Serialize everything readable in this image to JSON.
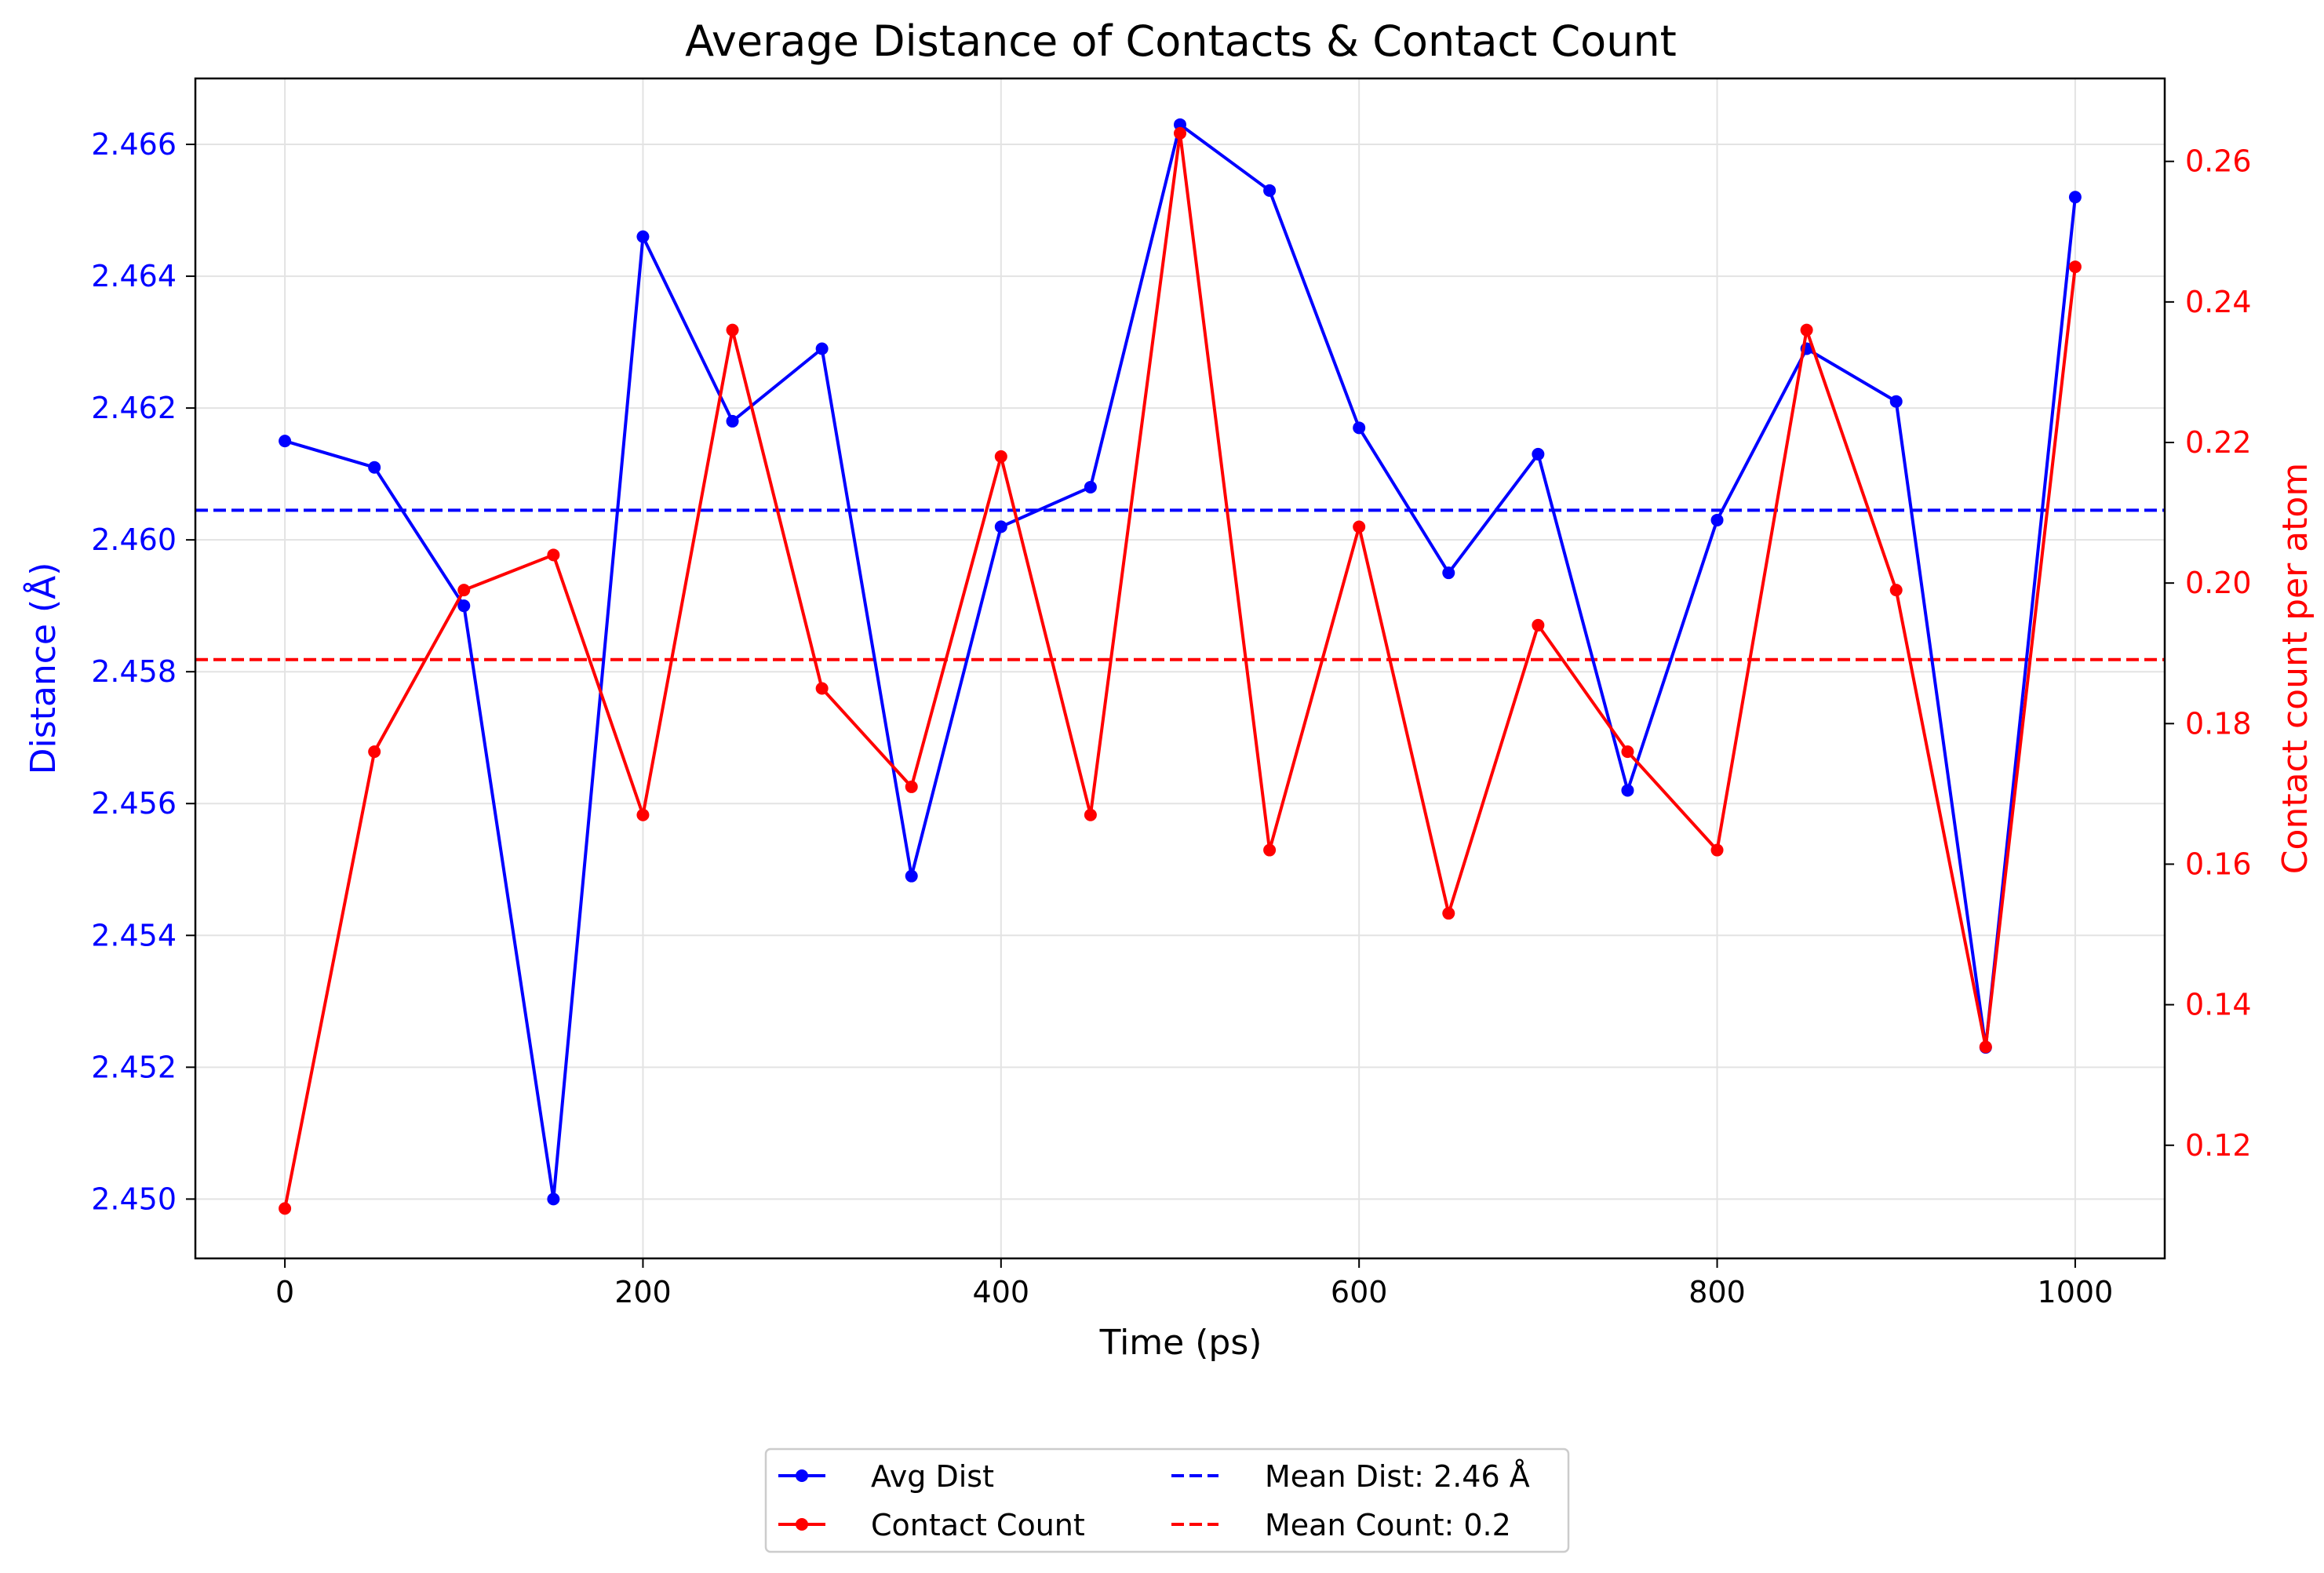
{
  "chart_data": {
    "type": "line",
    "title": "Average Distance of Contacts & Contact Count",
    "xlabel": "Time (ps)",
    "ylabel_left": "Distance (Å)",
    "ylabel_right": "Contact count per atom",
    "xlim": [
      -50,
      1050
    ],
    "ylim_left": [
      2.4491,
      2.467
    ],
    "ylim_right": [
      0.1039,
      0.2718
    ],
    "xticks": [
      0,
      200,
      400,
      600,
      800,
      1000
    ],
    "xtick_labels": [
      "0",
      "200",
      "400",
      "600",
      "800",
      "1000"
    ],
    "yticks_left": [
      2.45,
      2.452,
      2.454,
      2.456,
      2.458,
      2.46,
      2.462,
      2.464,
      2.466
    ],
    "ytick_labels_left": [
      "2.450",
      "2.452",
      "2.454",
      "2.456",
      "2.458",
      "2.460",
      "2.462",
      "2.464",
      "2.466"
    ],
    "yticks_right": [
      0.12,
      0.14,
      0.16,
      0.18,
      0.2,
      0.22,
      0.24,
      0.26
    ],
    "ytick_labels_right": [
      "0.12",
      "0.14",
      "0.16",
      "0.18",
      "0.20",
      "0.22",
      "0.24",
      "0.26"
    ],
    "grid": true,
    "legend_position": "below-center",
    "x": [
      0,
      50,
      100,
      150,
      200,
      250,
      300,
      350,
      400,
      450,
      500,
      550,
      600,
      650,
      700,
      750,
      800,
      850,
      900,
      950,
      1000
    ],
    "series": [
      {
        "name": "Avg Dist",
        "axis": "left",
        "color": "#0000ff",
        "style": "solid-marker",
        "values": [
          2.4615,
          2.4611,
          2.459,
          2.45,
          2.4646,
          2.4618,
          2.4629,
          2.4549,
          2.4602,
          2.4608,
          2.4663,
          2.4653,
          2.4617,
          2.4595,
          2.4613,
          2.4562,
          2.4603,
          2.4629,
          2.4621,
          2.4523,
          2.4652
        ]
      },
      {
        "name": "Contact Count",
        "axis": "right",
        "color": "#ff0000",
        "style": "solid-marker",
        "values": [
          0.111,
          0.176,
          0.199,
          0.204,
          0.167,
          0.236,
          0.185,
          0.171,
          0.218,
          0.167,
          0.264,
          0.162,
          0.208,
          0.153,
          0.194,
          0.176,
          0.162,
          0.236,
          0.199,
          0.134,
          0.245
        ]
      }
    ],
    "reference_lines": [
      {
        "name": "Mean Dist: 2.46 Å",
        "axis": "left",
        "value": 2.46045,
        "color": "#0000ff",
        "style": "dashed"
      },
      {
        "name": "Mean Count: 0.2",
        "axis": "right",
        "value": 0.1891,
        "color": "#ff0000",
        "style": "dashed"
      }
    ],
    "legend": [
      {
        "label": "Avg Dist",
        "color": "#0000ff",
        "style": "solid-marker"
      },
      {
        "label": "Contact Count",
        "color": "#ff0000",
        "style": "solid-marker"
      },
      {
        "label": "Mean Dist: 2.46 Å",
        "color": "#0000ff",
        "style": "dashed"
      },
      {
        "label": "Mean Count: 0.2",
        "color": "#ff0000",
        "style": "dashed"
      }
    ]
  }
}
